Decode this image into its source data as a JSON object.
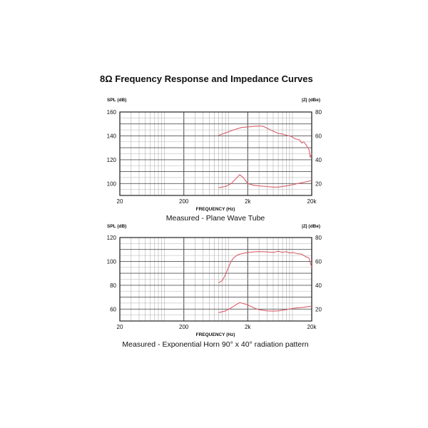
{
  "page": {
    "title": "8Ω Frequency Response and Impedance Curves"
  },
  "colors": {
    "curve": "#d9606a",
    "grid_major": "#555555",
    "grid_minor": "#b0b0b0",
    "frame": "#222222"
  },
  "chart_data": [
    {
      "type": "line",
      "title": "Measured - Plane Wave Tube",
      "xlabel": "FREQUENCY (Hz)",
      "ylabel": "SPL (dB)",
      "y2label": "|Z| (dBe)",
      "xscale": "log",
      "xlim": [
        20,
        20000
      ],
      "ylim": [
        90,
        160
      ],
      "y2lim": [
        10,
        80
      ],
      "x_ticks": [
        "20",
        "200",
        "2k",
        "20k"
      ],
      "y_ticks": [
        100,
        120,
        140,
        160
      ],
      "y2_ticks": [
        20,
        40,
        60,
        80
      ],
      "grid": true,
      "series": [
        {
          "axis": "left",
          "x": [
            700,
            900,
            1200,
            1600,
            2000,
            2500,
            3000,
            3500,
            4000,
            4500,
            5000,
            6000,
            7000,
            8000,
            9000,
            10000,
            11000,
            12000,
            13000,
            14000,
            15000,
            16000,
            17000,
            18000,
            19000,
            20000
          ],
          "y": [
            140.5,
            142.5,
            145,
            147,
            147.5,
            148,
            148.3,
            148,
            146.5,
            145,
            144,
            142,
            141.5,
            140.5,
            140,
            139,
            137.5,
            137,
            136.5,
            134,
            135,
            133,
            131,
            129,
            122,
            125
          ]
        },
        {
          "axis": "right",
          "x": [
            700,
            900,
            1100,
            1300,
            1500,
            1700,
            2000,
            2500,
            3000,
            4000,
            5000,
            6000,
            8000,
            10000,
            12000,
            15000,
            20000
          ],
          "y": [
            16.5,
            17.5,
            20,
            24,
            27.5,
            25,
            20,
            18.5,
            18,
            17.5,
            17,
            17,
            18,
            19,
            20,
            21,
            22.5
          ]
        }
      ]
    },
    {
      "type": "line",
      "title": "Measured - Exponential Horn 90° x 40° radiation pattern",
      "xlabel": "FREQUENCY (Hz)",
      "ylabel": "SPL (dB)",
      "y2label": "|Z| (dBe)",
      "xscale": "log",
      "xlim": [
        20,
        20000
      ],
      "ylim": [
        50,
        120
      ],
      "y2lim": [
        10,
        80
      ],
      "x_ticks": [
        "20",
        "200",
        "2k",
        "20k"
      ],
      "y_ticks": [
        60,
        80,
        100,
        120
      ],
      "y2_ticks": [
        20,
        40,
        60,
        80
      ],
      "grid": true,
      "series": [
        {
          "axis": "left",
          "x": [
            700,
            800,
            900,
            1000,
            1100,
            1200,
            1400,
            1600,
            2000,
            2500,
            3000,
            4000,
            5000,
            6000,
            7000,
            8000,
            9000,
            10000,
            12000,
            14000,
            16000,
            18000,
            20000
          ],
          "y": [
            82,
            84,
            89,
            95,
            100,
            103,
            105.5,
            106.5,
            107.5,
            108,
            108.2,
            108,
            107.5,
            108.5,
            107.5,
            108.3,
            107,
            107.5,
            106.5,
            106,
            104,
            103,
            95
          ]
        },
        {
          "axis": "right",
          "x": [
            700,
            900,
            1100,
            1300,
            1500,
            2000,
            2500,
            3000,
            4000,
            5000,
            6000,
            8000,
            10000,
            12000,
            15000,
            20000
          ],
          "y": [
            17,
            18.5,
            21,
            23.5,
            25.5,
            23.5,
            21,
            19.5,
            18.5,
            18.3,
            18.5,
            19.5,
            20.5,
            21,
            21.5,
            22.5
          ]
        }
      ]
    }
  ]
}
